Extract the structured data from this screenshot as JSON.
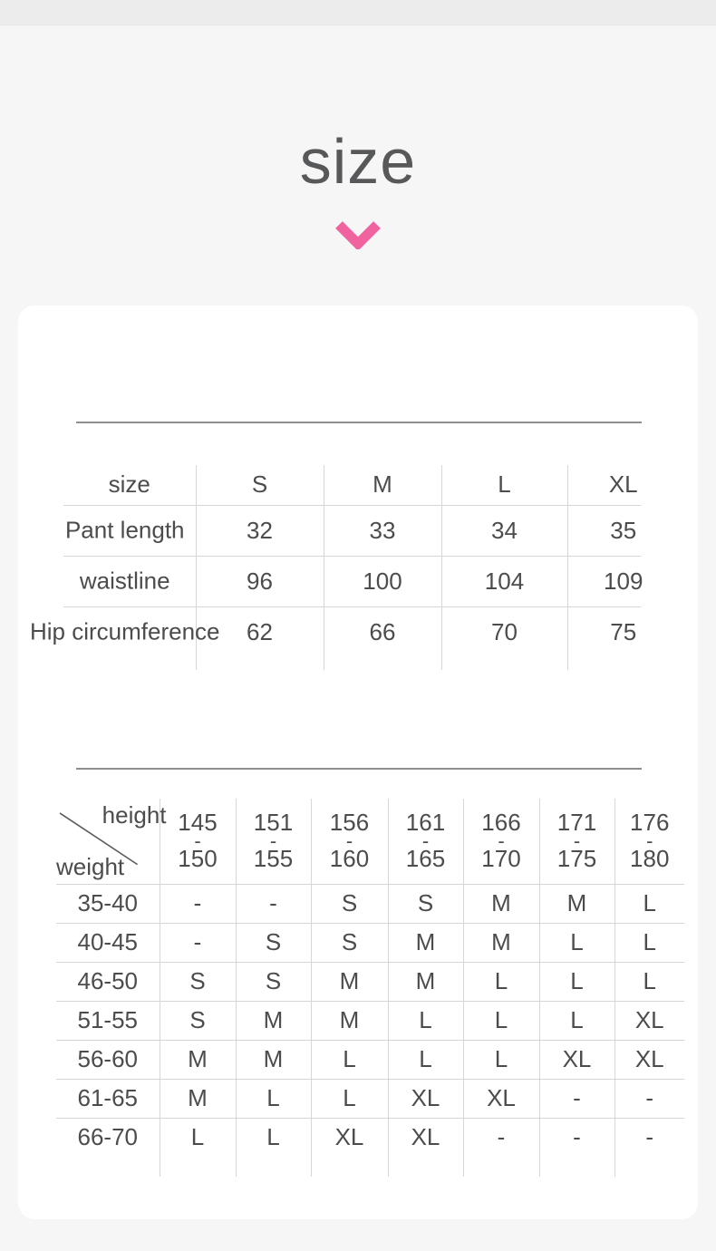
{
  "header": {
    "title": "size",
    "icon": "chevron-down"
  },
  "colors": {
    "accent_pink": "#f0639f",
    "title_gray": "#57585a",
    "table_text": "#4b4c4e",
    "light_line": "#d6d6d6",
    "thick_line": "#8e8e8e",
    "card_bg": "#ffffff",
    "page_bg": "#f6f6f6",
    "top_strip": "#ececec"
  },
  "size_table": {
    "header": [
      "size",
      "S",
      "M",
      "L",
      "XL"
    ],
    "rows": [
      {
        "label": "Pant length",
        "values": [
          "32",
          "33",
          "34",
          "35"
        ]
      },
      {
        "label": "waistline",
        "values": [
          "96",
          "100",
          "104",
          "109"
        ]
      },
      {
        "label": "Hip circumference",
        "values": [
          "62",
          "66",
          "70",
          "75"
        ]
      }
    ]
  },
  "fit_table": {
    "corner": {
      "top_right": "height",
      "bottom_left": "weight"
    },
    "range_separator": "-",
    "height_ranges": [
      {
        "from": "145",
        "to": "150"
      },
      {
        "from": "151",
        "to": "155"
      },
      {
        "from": "156",
        "to": "160"
      },
      {
        "from": "161",
        "to": "165"
      },
      {
        "from": "166",
        "to": "170"
      },
      {
        "from": "171",
        "to": "175"
      },
      {
        "from": "176",
        "to": "180"
      }
    ],
    "rows": [
      {
        "weight": "35-40",
        "values": [
          "-",
          "-",
          "S",
          "S",
          "M",
          "M",
          "L"
        ]
      },
      {
        "weight": "40-45",
        "values": [
          "-",
          "S",
          "S",
          "M",
          "M",
          "L",
          "L"
        ]
      },
      {
        "weight": "46-50",
        "values": [
          "S",
          "S",
          "M",
          "M",
          "L",
          "L",
          "L"
        ]
      },
      {
        "weight": "51-55",
        "values": [
          "S",
          "M",
          "M",
          "L",
          "L",
          "L",
          "XL"
        ]
      },
      {
        "weight": "56-60",
        "values": [
          "M",
          "M",
          "L",
          "L",
          "L",
          "XL",
          "XL"
        ]
      },
      {
        "weight": "61-65",
        "values": [
          "M",
          "L",
          "L",
          "XL",
          "XL",
          "-",
          "-"
        ]
      },
      {
        "weight": "66-70",
        "values": [
          "L",
          "L",
          "XL",
          "XL",
          "-",
          "-",
          "-"
        ]
      }
    ]
  }
}
